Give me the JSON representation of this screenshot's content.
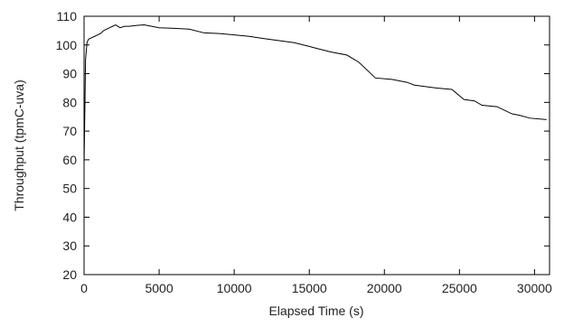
{
  "chart_data": {
    "type": "line",
    "xlabel": "Elapsed Time (s)",
    "ylabel": "Throughput (tpmC-uva)",
    "x": [
      0,
      100,
      200,
      300,
      500,
      700,
      900,
      1100,
      1300,
      1500,
      1700,
      1900,
      2100,
      2400,
      2700,
      3000,
      3500,
      4000,
      4500,
      5000,
      6000,
      7000,
      8000,
      9000,
      10000,
      11000,
      12000,
      13000,
      14000,
      15000,
      15500,
      16500,
      17500,
      18300,
      18700,
      19400,
      20500,
      21500,
      22000,
      23500,
      24500,
      25300,
      26000,
      26500,
      27500,
      28500,
      29000,
      29700,
      30800
    ],
    "series": [
      {
        "color": "#000000",
        "values": [
          58,
          95,
          101,
          102,
          102.5,
          103,
          103.5,
          104,
          105,
          105.5,
          106,
          106.5,
          107,
          106,
          106.5,
          106.5,
          106.8,
          107,
          106.5,
          106,
          105.8,
          105.5,
          104.2,
          104,
          103.5,
          103,
          102.2,
          101.5,
          100.8,
          99.5,
          98.8,
          97.5,
          96.5,
          94,
          92,
          88.5,
          88,
          87,
          86,
          85,
          84.5,
          81,
          80.5,
          79,
          78.5,
          76,
          75.5,
          74.5,
          74
        ]
      }
    ],
    "xlim": [
      0,
      31000
    ],
    "ylim": [
      20,
      110
    ],
    "xticks": [
      0,
      5000,
      10000,
      15000,
      20000,
      25000,
      30000
    ],
    "yticks": [
      20,
      30,
      40,
      50,
      60,
      70,
      80,
      90,
      100,
      110
    ]
  }
}
